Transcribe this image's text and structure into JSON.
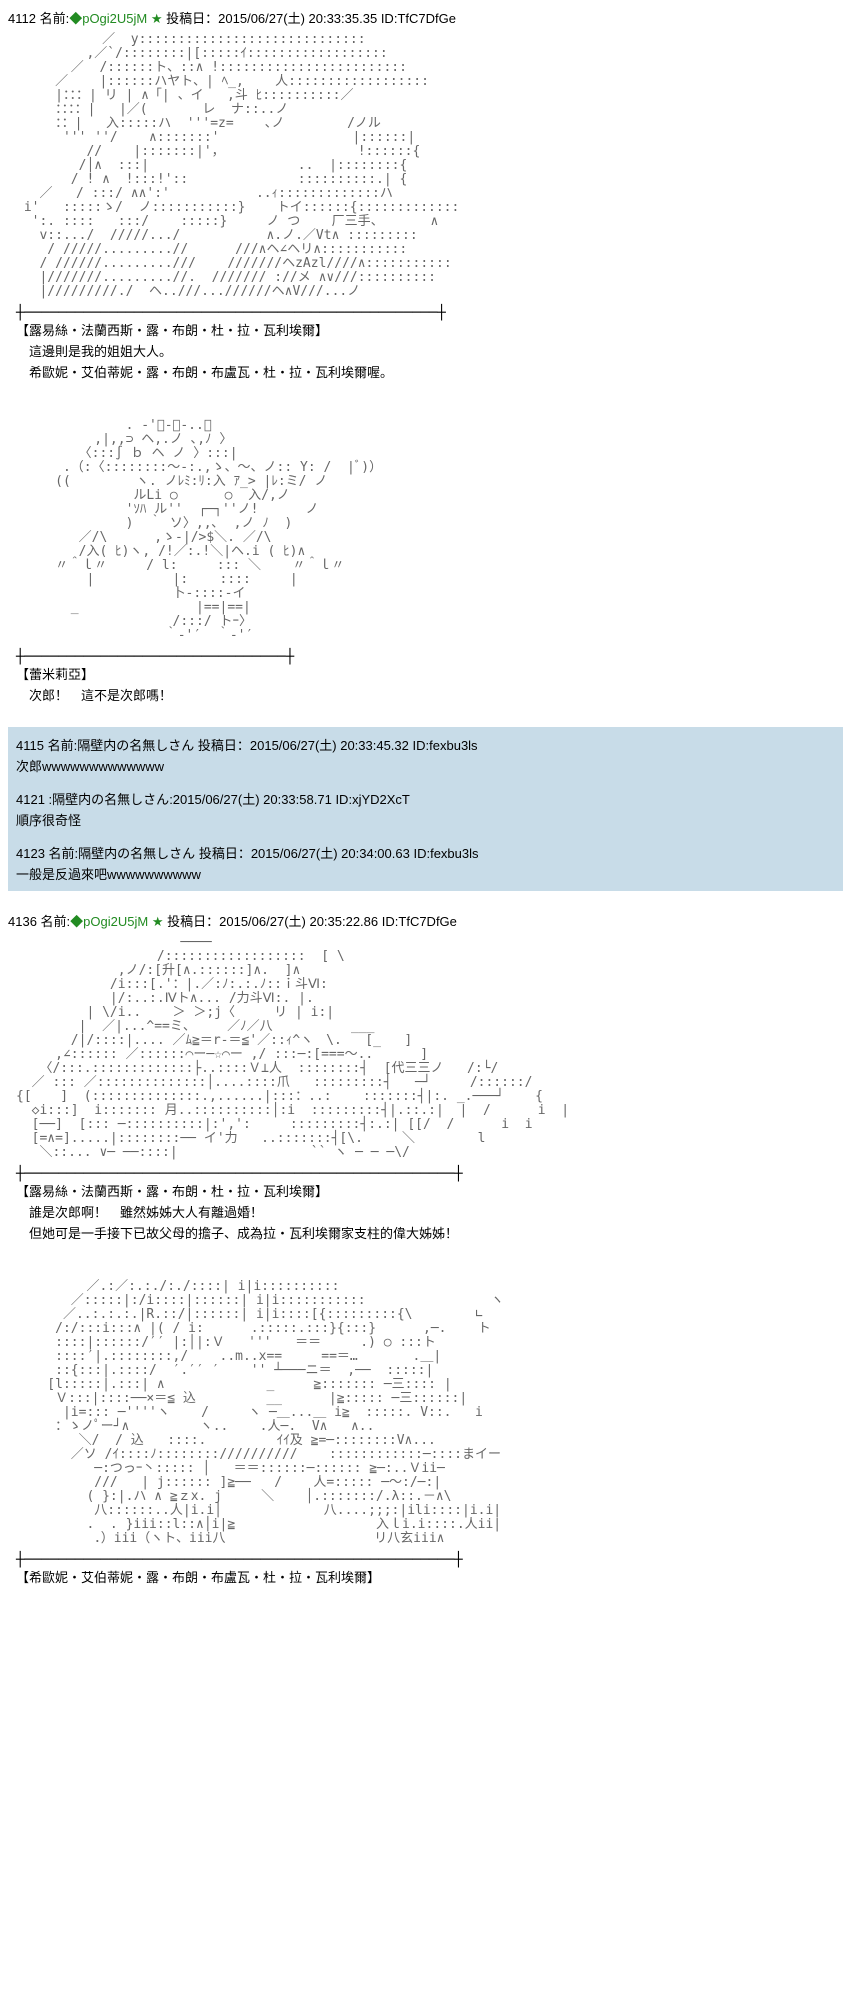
{
  "posts": [
    {
      "number": "4112",
      "name_label": "名前:",
      "trip": "◆pOgi2U5jM",
      "star": "★",
      "date_label": "投稿日：",
      "date": "2015/06/27(土) 20:33:35.35",
      "id_label": "ID:",
      "id": "TfC7DfGe",
      "ascii": "           ／  y:::::::::::::::::::::::::::::\n         ,／`/::::::::|[:::::ｲ::::::::::::::::::\n       ／  /::::::ト、::∧ !::::::::::::::::::::::::\n     ／    |::::::ハヤト、| ﾍ_,    人::::::::::::::::::\n     |：：：| リ | ∧「| 、イ   ,斗 ﾋ::::::::::／\n     ：：：：|   |／(       レ  ナ::..ノ\n     ：：|   入:::::ハ  '''=z=    ､ノ        /ノル\n      ''' ''/    ∧:::::::'                 |::::::|\n         //    |:::::::|'，                 !::::::{\n        /│∧  :::|                   ..  |::::::::{\n       / ! ∧  !:::!'::              ::::::::::.| {\n   ／   / :::/ ∧∧':'           ..ｨ:::::::::::::ハ\n i'   :::::ゝ/  ノ:::::::::::}    トイ::::::{:::::::::::::\n  ':. ::::   :::/    :::::}     ノ つ    厂三手、      ∧\n   v::.../  /////.../           ∧.ノ.／Vt∧ :::::::::\n    / /////.........//      ///∧ヘ∠ヘリ∧:::::::::::\n   / //////.........///    ///////ヘzAzl////∧:::::::::::\n   |///////.........//.  /////// ://メ ∧∨///::::::::::\n   |/////////./  ヘ..///...//////ヘ∧V///...ノ",
      "speaker": "【露易絲・法蘭西斯・露・布朗・杜・拉・瓦利埃爾】",
      "line1": "　這邊則是我的姐姐大人。",
      "line2": "　希歐妮・艾伯蒂妮・露・布朗・布盧瓦・杜・拉・瓦利埃爾喔。"
    },
    {
      "number": "",
      "ascii2": "              . -'ﾞ-〜-..、\n          ,|,,⊃ ヘ,.ノ ､,ﾉ 〉\n        〈:::∫ ｂ ヘ ノ 〉:::|\n      .（:〈::::::::〜-:.,ゝ、〜、ノ:: Y: /  |ﾞ)）\n     ((　　     ヽ. ノﾚﾐ:ﾘ:入 ｱ_> |ﾚ:ミ/ ノ\n               ルLi ○      ○  入/,ノ\n              'ｿﾊ ル''  ┌─┐''ノ!      ノ\n              )  ｀ ソ〉,,､  ,ノ ﾉ  )\n        ／/\\      ,ゝ-|/>$＼. ／/\\\n        /入( ﾋ)ヽ, /!／:.!＼|ヘ.i ( ﾋ)∧\n     〃＾ｌ〃     / l:     ::: ＼    〃＾ｌ〃\n         |          |:    ::::     |\n                    卜-::::-イ\n       _               |==|==|\n                    /:::/ トｰ〉\n                   ｀-'′  ｀-'′",
      "speaker2": "【蕾米莉亞】",
      "dialogue2": "　次郎！　這不是次郎嗎！"
    }
  ],
  "replies": [
    {
      "number": "4115",
      "name_label": "名前:",
      "name": "隔壁内の名無しさん",
      "date_label": "投稿日：",
      "date": "2015/06/27(土) 20:33:45.32",
      "id_label": "ID:",
      "id": "fexbu3ls",
      "body": "次郎wwwwwwwwwwwww"
    },
    {
      "number": "4121",
      "name_label": ":",
      "name": "隔壁内の名無しさん",
      "date": ":2015/06/27(土) 20:33:58.71",
      "id_label": "ID:",
      "id": "xjYD2XcT",
      "body": "順序很奇怪"
    },
    {
      "number": "4123",
      "name_label": "名前:",
      "name": "隔壁内の名無しさん",
      "date_label": "投稿日：",
      "date": "2015/06/27(土) 20:34:00.63",
      "id_label": "ID:",
      "id": "fexbu3ls",
      "body": "一般是反過來吧wwwwwwwwww"
    }
  ],
  "post2": {
    "number": "4136",
    "name_label": "名前:",
    "trip": "◆pOgi2U5jM",
    "star": "★",
    "date_label": "投稿日：",
    "date": "2015/06/27(土) 20:35:22.86",
    "id_label": "ID:",
    "id": "TfC7DfGe",
    "ascii": "                     ────\n                  /::::::::::::::::::  [ \\\n             ,ノ/:[升[∧.::::::]∧.  ]∧\n            /i:::[.'：|.／:ﾉ:.:.ﾉ::ｉ斗Ⅵ:\n            |/:..:.Ⅳト∧... /力斗Ⅵ:. |.\n         | \\/i..    ＞ ＞;j〈     リ | i:|\n        |  ／|...^==ミ、    ／ﾉ／八          ___\n       /|/::::|.... ／ﾑ≧＝r-＝≦'／::ｨ^ヽ　\\.   [_   ]\n     ,∠:::::: ／::::::⌒ー─☆⌒ー ,/ :::─:[===〜..      ]\n   〈/:::.:::::::::::::├..::::Ｖ⊥人  ::::::::┤  [代三三ノ   /:└/\n  ／ ::: ／::::::::::::::│....::::爪   :::::::::┤   ─┘     /::::::/\n{[ 　 ]  (::::::::::::::.,......|:::：..:    :::::::┤|:. _.───┘    {\n  ◇i:::]  i::::::: 月..::::::::::│:i  :::::::::┤|.::.:|  |  /      i  |\n  [──]  [::: ─::::::::::|:',':     :::::::::┤:.:| [[/  /      i  i\n  [=∧=].....|::::::::── イ'力   ..:::::::┤[\\.     ＼        l\n   ＼::... ∨─ ──::::|                 `` ヽ ─ ─ ─\\/",
    "speaker": "【露易絲・法蘭西斯・露・布朗・杜・拉・瓦利埃爾】",
    "line1": "　誰是次郎啊！　雖然姊姊大人有離過婚！",
    "line2": "　但她可是一手接下已故父母的擔子、成為拉・瓦利埃爾家支柱的偉大姊姊！",
    "ascii2": "         ／.:／:.:./:./::::| i|i::::::::::\n       ／:::::|:/i::::|::::::| i|i:::::::::::                ヽ\n      ／..:.:.:.|R.::/|::::::| i|i::::[{:::::::::{\\        ∟\n     /:/:::i:::∧ |( / i:      .:::::.:::}{:::}      ,─.    ト\n     ::::|::::::/′′ |:│|:Ｖ   '''   ＝＝     .) ○ :::ト\n     ::::′|.::::::::,/    ..m..x==     ==＝…       .＿|\n     ::{:::|.::::/  ′.′′ ′    '' ┴───ニ＝  ,──  :::::|\n    [l:::::|.:::| ∧             _     ≧::::::: ─三:::: |\n     Ｖ:::|::::──×＝≦ 込         __      |≧::::: ─三::::::|\n      |i=::: ─''''ヽ    /     ヽ ─＿...＿ i≧  :::::. V::.   i\n     ：ゝノﾟー┘∧         ヽ..    .人─.  V∧   ∧..\n        ＼/  / 込   ::::.         ｲｲ及 ≧=─::::::::V∧...\n       ／ソ /ｲ::::ﾉ:::::::://////////    ::::::::::::─::::まイー\n          ─:つっｰ丶::::: │   ＝＝::::::─:::::: ≧─:..Ｖii─\n          ///   | j:::::: ]≧──   /    人=::::: ─〜:/─:|\n         ( }:|.ハ ∧ ≧ｚx. j     ＼    │.:::::::/.λ::.－∧\\\n          八::::::..人|i.i│             八....;;;:|ili::::|i.i|\n         .  . }iii::l::∧│i|≧                  入ｌi.i::::.人ii|\n          ．）iii（ヽト、iii八                   リ八玄iii∧",
    "speaker2": "【希歐妮・艾伯蒂妮・露・布朗・布盧瓦・杜・拉・瓦利埃爾】"
  }
}
